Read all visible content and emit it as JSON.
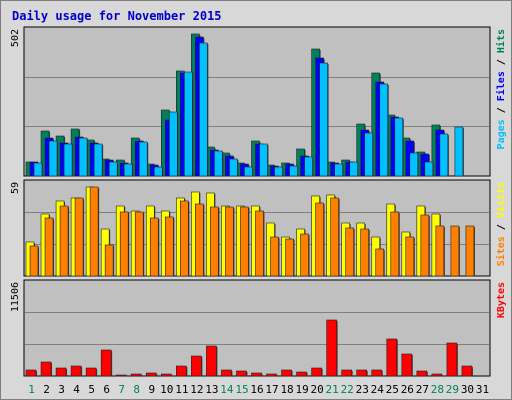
{
  "chart_data": {
    "type": "bar",
    "title": "Daily usage for November 2015",
    "colors": {
      "title": "#0000cc",
      "hits": "#00805c",
      "files": "#0000ff",
      "pages": "#00c0ff",
      "visits": "#ffff00",
      "sites": "#ff8000",
      "kbytes": "#ff0000",
      "weekend_label": "#00805c",
      "weekday_label": "#000080",
      "panel_bg": "#c0c0c0",
      "frame_bg": "#d8d8d8"
    },
    "categories": [
      "1",
      "2",
      "3",
      "4",
      "5",
      "6",
      "7",
      "8",
      "9",
      "10",
      "11",
      "12",
      "13",
      "14",
      "15",
      "16",
      "17",
      "18",
      "19",
      "20",
      "21",
      "22",
      "23",
      "24",
      "25",
      "26",
      "27",
      "28",
      "29",
      "30",
      "31"
    ],
    "weekend_days": [
      "1",
      "7",
      "8",
      "14",
      "15",
      "21",
      "22",
      "28",
      "29"
    ],
    "panels": [
      {
        "id": "usage",
        "max_label": "502",
        "ymax": 502,
        "labels": [
          "Hits",
          "Files",
          "Pages"
        ],
        "series": [
          {
            "name": "Hits",
            "values": [
              50,
              155,
              140,
              162,
              125,
              60,
              55,
              130,
              42,
              230,
              365,
              490,
              100,
              80,
              45,
              122,
              38,
              45,
              95,
              440,
              50,
              55,
              180,
              355,
              210,
              130,
              83,
              175,
              0,
              0,
              0
            ]
          },
          {
            "name": "Files",
            "values": [
              48,
              130,
              115,
              135,
              115,
              55,
              45,
              120,
              38,
              195,
              355,
              480,
              90,
              70,
              40,
              112,
              35,
              40,
              70,
              410,
              45,
              50,
              158,
              325,
              205,
              120,
              75,
              160,
              0,
              0,
              0
            ]
          },
          {
            "name": "Pages",
            "values": [
              45,
              120,
              112,
              130,
              110,
              50,
              42,
              118,
              30,
              220,
              360,
              460,
              85,
              60,
              30,
              110,
              30,
              35,
              65,
              390,
              42,
              48,
              150,
              320,
              200,
              80,
              48,
              145,
              170,
              0,
              0
            ]
          }
        ]
      },
      {
        "id": "visitors",
        "max_label": "59",
        "ymax": 59,
        "labels": [
          "Visits",
          "Sites"
        ],
        "series": [
          {
            "name": "Visits",
            "values": [
              22,
              40,
              48,
              50,
              57,
              30,
              45,
              42,
              45,
              42,
              50,
              54,
              53,
              45,
              45,
              45,
              34,
              25,
              30,
              51,
              52,
              34,
              34,
              25,
              46,
              28,
              45,
              40,
              0,
              0,
              0
            ]
          },
          {
            "name": "Sites",
            "values": [
              19,
              37,
              45,
              50,
              57,
              20,
              41,
              41,
              37,
              38,
              48,
              46,
              44,
              44,
              44,
              42,
              25,
              24,
              27,
              47,
              50,
              31,
              30,
              17,
              41,
              25,
              39,
              32,
              32,
              32,
              0
            ]
          }
        ]
      },
      {
        "id": "kbytes",
        "max_label": "11506",
        "ymax": 11506,
        "labels": [
          "KBytes"
        ],
        "series": [
          {
            "name": "KBytes",
            "values": [
              700,
              1700,
              950,
              1200,
              1000,
              3300,
              100,
              220,
              400,
              230,
              1200,
              2500,
              3700,
              700,
              600,
              400,
              300,
              750,
              550,
              1000,
              7000,
              700,
              750,
              750,
              4600,
              2800,
              650,
              200,
              4100,
              1300,
              0
            ]
          }
        ]
      }
    ]
  }
}
